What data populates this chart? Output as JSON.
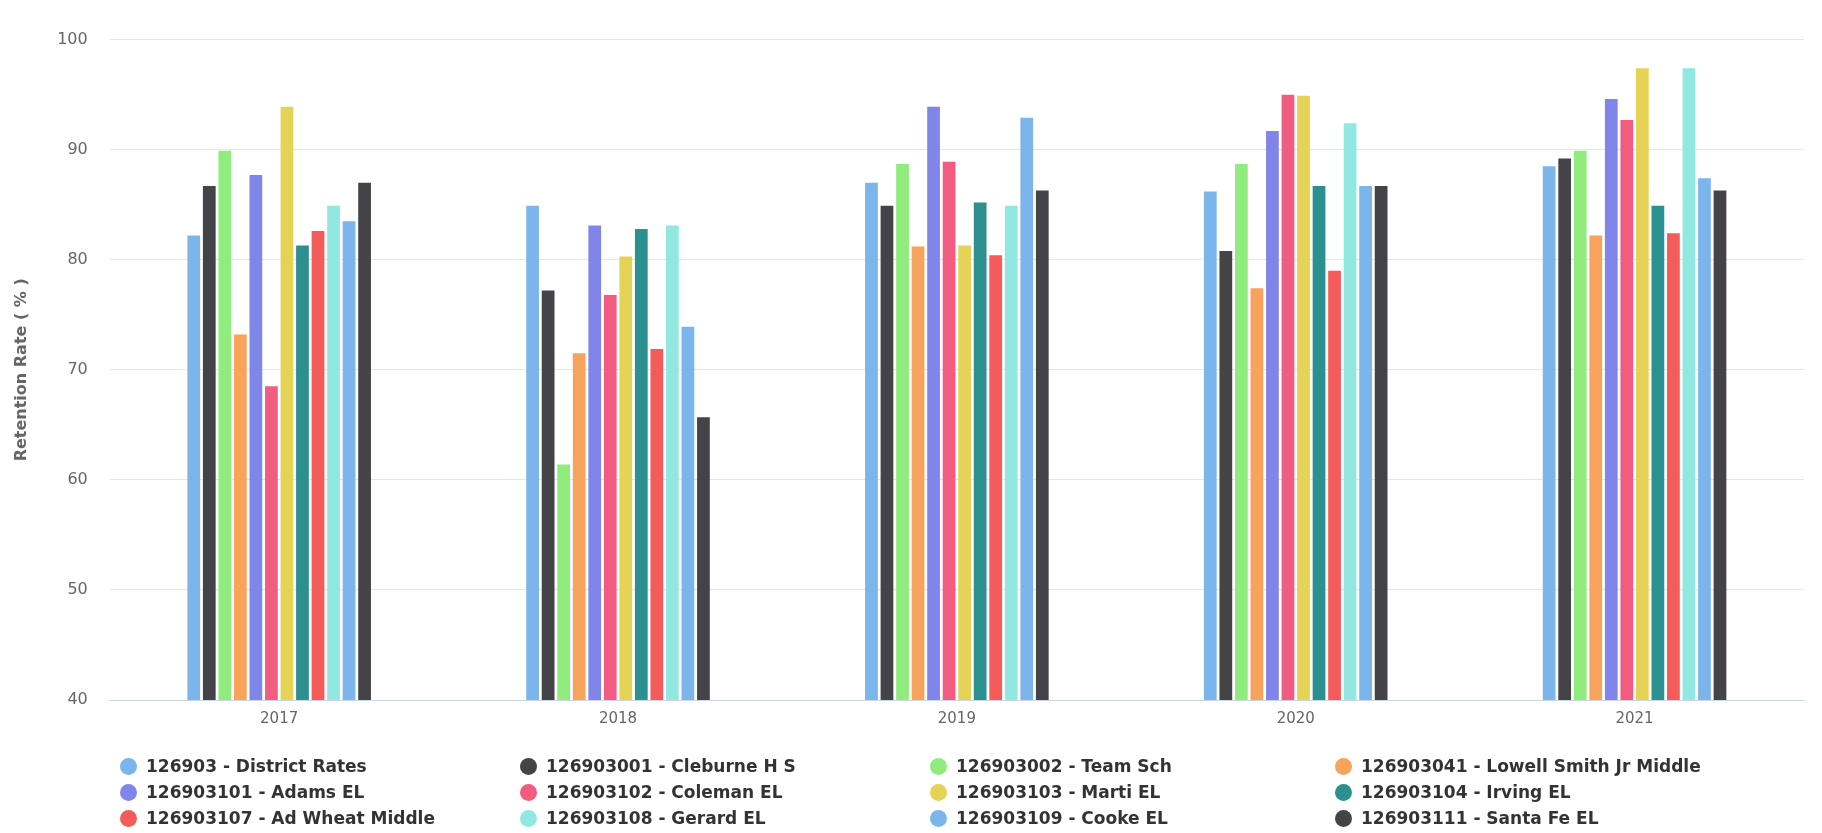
{
  "chart_data": {
    "type": "bar",
    "ylabel": "Retention Rate ( % )",
    "categories": [
      "2017",
      "2018",
      "2019",
      "2020",
      "2021"
    ],
    "ylim": [
      40,
      100
    ],
    "yticks": [
      40,
      50,
      60,
      70,
      80,
      90,
      100
    ],
    "grid": "y",
    "legend": "bottom",
    "series": [
      {
        "name": "126903 - District Rates",
        "color": "#7cb5ec",
        "values": [
          82.2,
          84.9,
          87.0,
          86.2,
          88.5
        ]
      },
      {
        "name": "126903001 - Cleburne H S",
        "color": "#434348",
        "values": [
          86.7,
          77.2,
          84.9,
          80.8,
          89.2
        ]
      },
      {
        "name": "126903002 - Team Sch",
        "color": "#90ed7d",
        "values": [
          89.9,
          61.4,
          88.7,
          88.7,
          89.9
        ]
      },
      {
        "name": "126903041 - Lowell Smith Jr Middle",
        "color": "#f7a35c",
        "values": [
          73.2,
          71.5,
          81.2,
          77.4,
          82.2
        ]
      },
      {
        "name": "126903101 - Adams EL",
        "color": "#8085e9",
        "values": [
          87.7,
          83.1,
          93.9,
          91.7,
          94.6
        ]
      },
      {
        "name": "126903102 - Coleman EL",
        "color": "#f15c80",
        "values": [
          68.5,
          76.8,
          88.9,
          95.0,
          92.7
        ]
      },
      {
        "name": "126903103 - Marti EL",
        "color": "#e4d354",
        "values": [
          93.9,
          80.3,
          81.3,
          94.9,
          97.4
        ]
      },
      {
        "name": "126903104 - Irving EL",
        "color": "#2b908f",
        "values": [
          81.3,
          82.8,
          85.2,
          86.7,
          84.9
        ]
      },
      {
        "name": "126903107 - Ad Wheat Middle",
        "color": "#f45b5b",
        "values": [
          82.6,
          71.9,
          80.4,
          79.0,
          82.4
        ]
      },
      {
        "name": "126903108 - Gerard EL",
        "color": "#91e8e1",
        "values": [
          84.9,
          83.1,
          84.9,
          92.4,
          97.4
        ]
      },
      {
        "name": "126903109 - Cooke EL",
        "color": "#7cb5ec",
        "values": [
          83.5,
          73.9,
          92.9,
          86.7,
          87.4
        ]
      },
      {
        "name": "126903111 - Santa Fe EL",
        "color": "#434348",
        "values": [
          87.0,
          65.7,
          86.3,
          86.7,
          86.3
        ]
      }
    ]
  }
}
